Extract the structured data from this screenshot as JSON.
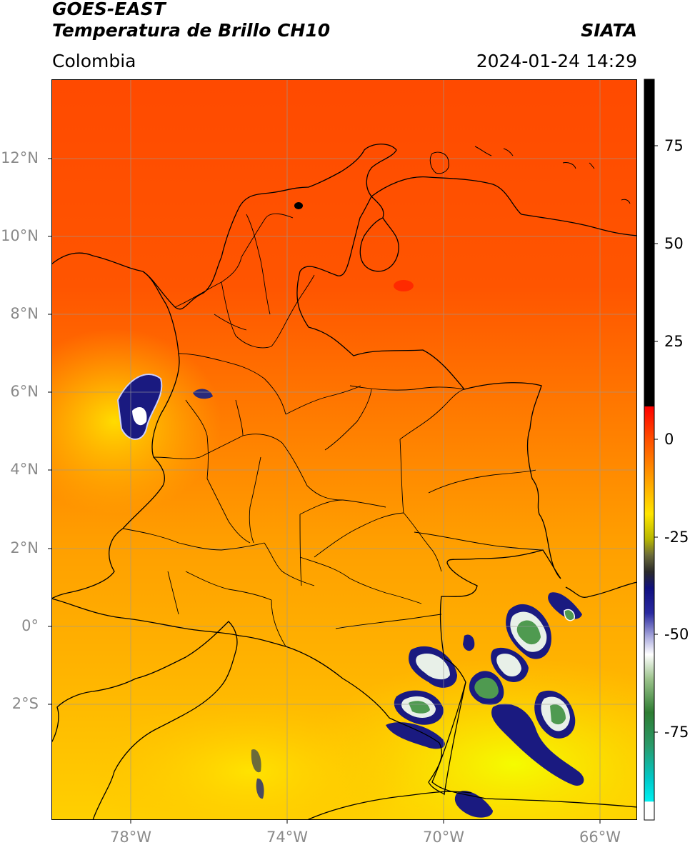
{
  "header": {
    "title_line1": "GOES-EAST",
    "title_line2": "Temperatura de Brillo CH10",
    "region": "Colombia",
    "source": "SIATA",
    "datetime": "2024-01-24 14:29"
  },
  "map": {
    "lat_labels": [
      "12°N",
      "10°N",
      "8°N",
      "6°N",
      "4°N",
      "2°N",
      "0°",
      "2°S"
    ],
    "lon_labels": [
      "78°W",
      "74°W",
      "70°W",
      "66°W"
    ],
    "gridlines": true
  },
  "colorbar": {
    "ticks": [
      "75",
      "50",
      "25",
      "0",
      "-25",
      "-50",
      "-75"
    ],
    "colors": {
      "warm_top": "#ff3300",
      "orange": "#ff8c00",
      "yellow": "#ffee00",
      "dark_blue": "#0a0a70",
      "white": "#ffffff",
      "green": "#2e7d32",
      "cyan": "#00e5e5",
      "black": "#000000"
    }
  }
}
